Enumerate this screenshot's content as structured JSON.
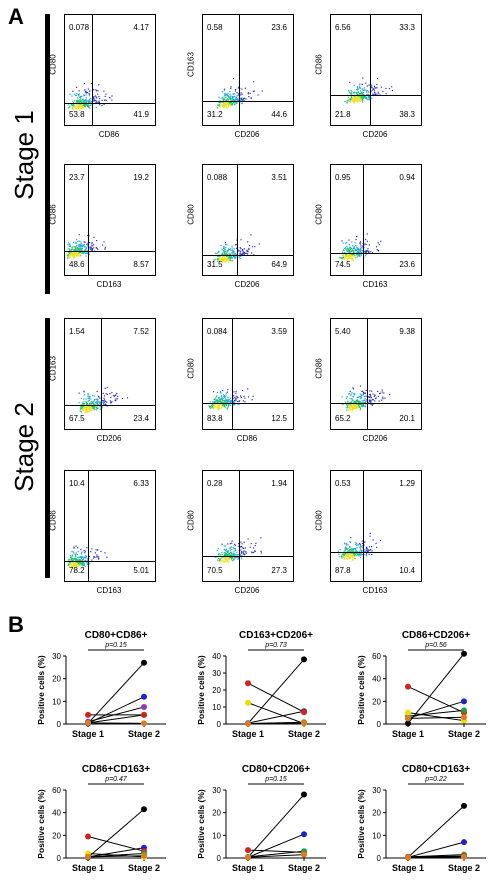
{
  "panel_a_letter": "A",
  "panel_b_letter": "B",
  "stage1_label": "Stage 1",
  "stage2_label": "Stage 2",
  "flow_plots": [
    {
      "y": "CD80",
      "x": "CD86",
      "tl": "0.078",
      "tr": "4.17",
      "bl": "53.8",
      "br": "41.9"
    },
    {
      "y": "CD163",
      "x": "CD206",
      "tl": "0.58",
      "tr": "23.6",
      "bl": "31.2",
      "br": "44.6"
    },
    {
      "y": "CD86",
      "x": "CD206",
      "tl": "6.56",
      "tr": "33.3",
      "bl": "21.8",
      "br": "38.3"
    },
    {
      "y": "CD86",
      "x": "CD163",
      "tl": "23.7",
      "tr": "19.2",
      "bl": "48.6",
      "br": "8.57"
    },
    {
      "y": "CD80",
      "x": "CD206",
      "tl": "0.088",
      "tr": "3.51",
      "bl": "31.5",
      "br": "64.9"
    },
    {
      "y": "CD80",
      "x": "CD163",
      "tl": "0.95",
      "tr": "0.94",
      "bl": "74.5",
      "br": "23.6"
    },
    {
      "y": "CD163",
      "x": "CD206",
      "tl": "1.54",
      "tr": "7.52",
      "bl": "67.5",
      "br": "23.4"
    },
    {
      "y": "CD80",
      "x": "CD86",
      "tl": "0.084",
      "tr": "3.59",
      "bl": "83.8",
      "br": "12.5"
    },
    {
      "y": "CD86",
      "x": "CD206",
      "tl": "5.40",
      "tr": "9.38",
      "bl": "65.2",
      "br": "20.1"
    },
    {
      "y": "CD86",
      "x": "CD163",
      "tl": "10.4",
      "tr": "6.33",
      "bl": "78.2",
      "br": "5.01"
    },
    {
      "y": "CD80",
      "x": "CD206",
      "tl": "0.28",
      "tr": "1.94",
      "bl": "70.5",
      "br": "27.3"
    },
    {
      "y": "CD80",
      "x": "CD163",
      "tl": "0.53",
      "tr": "1.29",
      "bl": "87.8",
      "br": "10.4"
    }
  ],
  "chart_data": [
    {
      "type": "line",
      "title": "CD80+CD86+",
      "pvalue": "p=0.15",
      "ylabel": "Positive cells (%)",
      "categories": [
        "Stage 1",
        "Stage 2"
      ],
      "ylim": [
        0,
        30
      ],
      "yticks": [
        "0",
        "10",
        "20",
        "30"
      ],
      "series": [
        {
          "color": "#000000",
          "values": [
            0.3,
            27
          ]
        },
        {
          "color": "#1f1fd6",
          "values": [
            0.3,
            12
          ]
        },
        {
          "color": "#8a3fa8",
          "values": [
            1,
            7.5
          ]
        },
        {
          "color": "#2f9e2f",
          "values": [
            0.5,
            4
          ]
        },
        {
          "color": "#d62020",
          "values": [
            4,
            4
          ]
        },
        {
          "color": "#e07a20",
          "values": [
            0.5,
            0.3
          ]
        }
      ]
    },
    {
      "type": "line",
      "title": "CD163+CD206+",
      "pvalue": "p=0.73",
      "ylabel": "Positive cells (%)",
      "categories": [
        "Stage 1",
        "Stage 2"
      ],
      "ylim": [
        0,
        40
      ],
      "yticks": [
        "0",
        "10",
        "20",
        "30",
        "40"
      ],
      "series": [
        {
          "color": "#000000",
          "values": [
            0.3,
            38
          ]
        },
        {
          "color": "#1f1fd6",
          "values": [
            0.5,
            7.5
          ]
        },
        {
          "color": "#d62020",
          "values": [
            24,
            7
          ]
        },
        {
          "color": "#e8e000",
          "values": [
            12.5,
            0.3
          ]
        },
        {
          "color": "#2f9e2f",
          "values": [
            0.3,
            1
          ]
        },
        {
          "color": "#e07a20",
          "values": [
            0.3,
            0.5
          ]
        }
      ]
    },
    {
      "type": "line",
      "title": "CD86+CD206+",
      "pvalue": "p=0.56",
      "ylabel": "Positive cells (%)",
      "categories": [
        "Stage 1",
        "Stage 2"
      ],
      "ylim": [
        0,
        60
      ],
      "yticks": [
        "0",
        "20",
        "40",
        "60"
      ],
      "series": [
        {
          "color": "#000000",
          "values": [
            0.5,
            62
          ]
        },
        {
          "color": "#1f1fd6",
          "values": [
            5,
            20
          ]
        },
        {
          "color": "#d62020",
          "values": [
            33,
            10
          ]
        },
        {
          "color": "#2f9e2f",
          "values": [
            7,
            12
          ]
        },
        {
          "color": "#e8e000",
          "values": [
            10,
            3
          ]
        },
        {
          "color": "#e07a20",
          "values": [
            5,
            6
          ]
        }
      ]
    },
    {
      "type": "line",
      "title": "CD86+CD163+",
      "pvalue": "p=0.47",
      "ylabel": "Positive cells (%)",
      "categories": [
        "Stage 1",
        "Stage 2"
      ],
      "ylim": [
        0,
        60
      ],
      "yticks": [
        "0",
        "20",
        "40",
        "60"
      ],
      "series": [
        {
          "color": "#000000",
          "values": [
            0.5,
            43
          ]
        },
        {
          "color": "#1f1fd6",
          "values": [
            1,
            9
          ]
        },
        {
          "color": "#d62020",
          "values": [
            19,
            6
          ]
        },
        {
          "color": "#e8e000",
          "values": [
            4,
            1
          ]
        },
        {
          "color": "#2f9e2f",
          "values": [
            1,
            4
          ]
        },
        {
          "color": "#e07a20",
          "values": [
            1,
            2
          ]
        }
      ]
    },
    {
      "type": "line",
      "title": "CD80+CD206+",
      "pvalue": "p=0.15",
      "ylabel": "Positive cells (%)",
      "categories": [
        "Stage 1",
        "Stage 2"
      ],
      "ylim": [
        0,
        30
      ],
      "yticks": [
        "0",
        "10",
        "20",
        "30"
      ],
      "series": [
        {
          "color": "#000000",
          "values": [
            0.3,
            28
          ]
        },
        {
          "color": "#1f1fd6",
          "values": [
            0.3,
            10.5
          ]
        },
        {
          "color": "#d62020",
          "values": [
            3.5,
            2.5
          ]
        },
        {
          "color": "#2f9e2f",
          "values": [
            0.5,
            3
          ]
        },
        {
          "color": "#e07a20",
          "values": [
            0.3,
            1.5
          ]
        }
      ]
    },
    {
      "type": "line",
      "title": "CD80+CD163+",
      "pvalue": "p=0.22",
      "ylabel": "Positive cells (%)",
      "categories": [
        "Stage 1",
        "Stage 2"
      ],
      "ylim": [
        0,
        30
      ],
      "yticks": [
        "0",
        "10",
        "20",
        "30"
      ],
      "series": [
        {
          "color": "#000000",
          "values": [
            0.3,
            23
          ]
        },
        {
          "color": "#1f1fd6",
          "values": [
            0.3,
            7
          ]
        },
        {
          "color": "#2f9e2f",
          "values": [
            0.5,
            1.5
          ]
        },
        {
          "color": "#d62020",
          "values": [
            0.5,
            0.8
          ]
        },
        {
          "color": "#e07a20",
          "values": [
            0.3,
            0.5
          ]
        }
      ]
    }
  ]
}
